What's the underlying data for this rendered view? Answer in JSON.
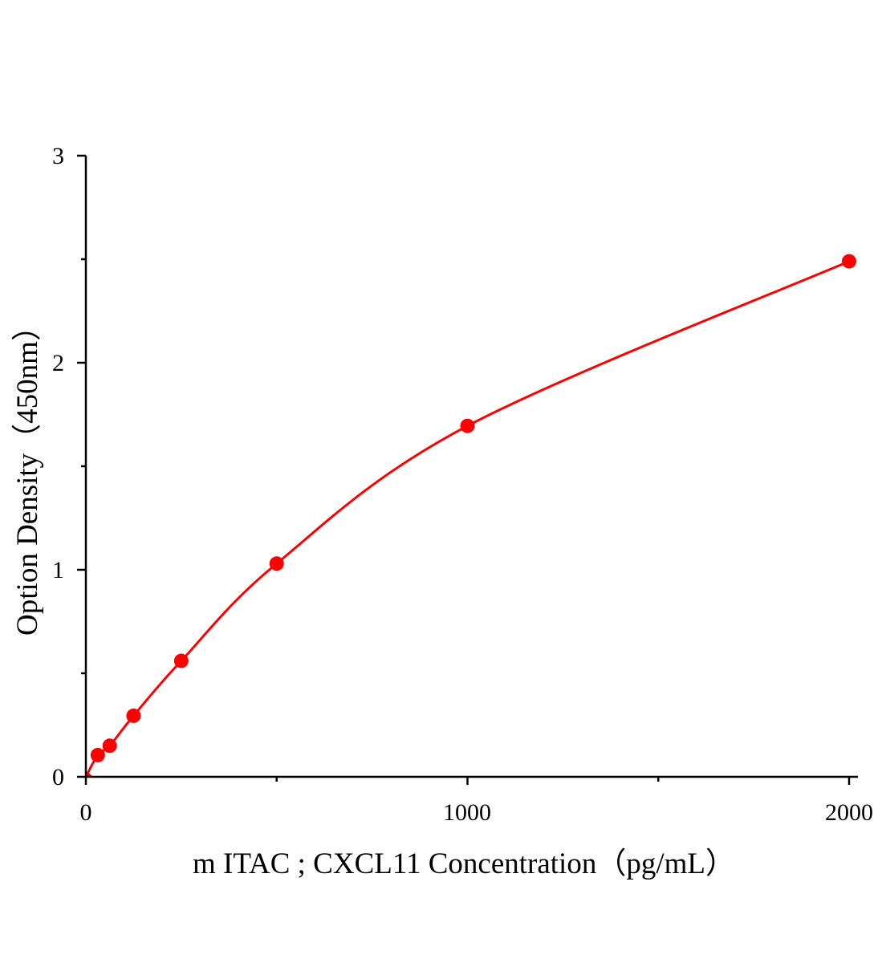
{
  "chart_data": {
    "type": "scatter",
    "title": "",
    "xlabel": "m ITAC ; CXCL11 Concentration（pg/mL）",
    "ylabel": "Option Density（450nm）",
    "xlim": [
      0,
      2000
    ],
    "ylim": [
      0,
      3
    ],
    "x_ticks": [
      "0",
      "1000",
      "2000"
    ],
    "y_ticks": [
      "0",
      "1",
      "2",
      "3"
    ],
    "x_minor_ticks": [
      500,
      1500
    ],
    "y_minor_ticks": [
      0.5,
      1.5,
      2.5
    ],
    "grid": false,
    "legend": "none",
    "series": [
      {
        "x": [
          0,
          31.25,
          62.5,
          125,
          250,
          500,
          1000,
          2000
        ],
        "y": [
          0,
          0.105,
          0.15,
          0.295,
          0.56,
          1.03,
          1.695,
          2.49
        ],
        "color": "#ff0000",
        "fit_curve": true
      }
    ]
  }
}
